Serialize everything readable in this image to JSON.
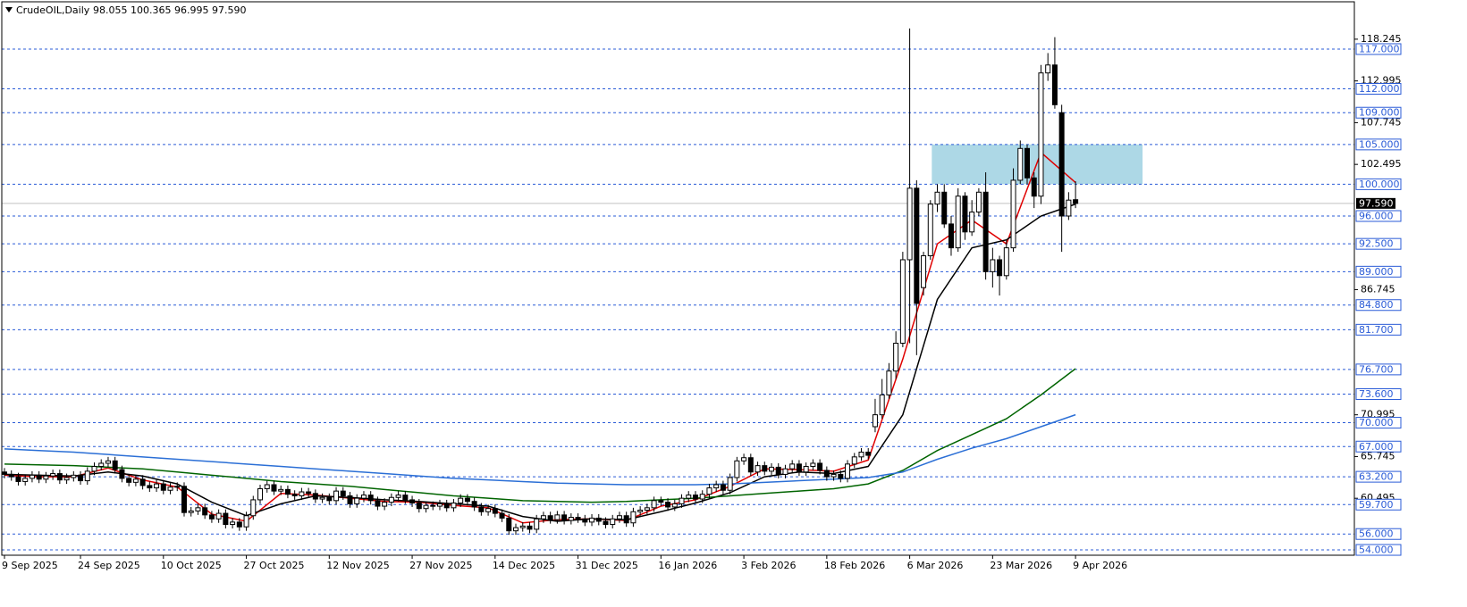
{
  "chart_data": {
    "type": "candlestick",
    "title": "CrudeOIL,Daily",
    "quote": "98.055 100.365 96.995 97.590",
    "xlim": [
      -0.39,
      195.35
    ],
    "ylim": [
      53.33,
      122.95
    ],
    "xticks": [
      {
        "value": 0,
        "label": "9 Sep 2025"
      },
      {
        "value": 11,
        "label": "24 Sep 2025"
      },
      {
        "value": 23,
        "label": "10 Oct 2025"
      },
      {
        "value": 35,
        "label": "27 Oct 2025"
      },
      {
        "value": 47,
        "label": "12 Nov 2025"
      },
      {
        "value": 59,
        "label": "27 Nov 2025"
      },
      {
        "value": 71,
        "label": "14 Dec 2025"
      },
      {
        "value": 83,
        "label": "31 Dec 2025"
      },
      {
        "value": 95,
        "label": "16 Jan 2026"
      },
      {
        "value": 107,
        "label": "3 Feb 2026"
      },
      {
        "value": 119,
        "label": "18 Feb 2026"
      },
      {
        "value": 131,
        "label": "6 Mar 2026"
      },
      {
        "value": 143,
        "label": "23 Mar 2026"
      },
      {
        "value": 155,
        "label": "9 Apr 2026"
      }
    ],
    "yticks": [
      118.245,
      112.995,
      107.745,
      102.495,
      86.745,
      70.995,
      65.745,
      60.495
    ],
    "levels": [
      {
        "value": 117,
        "label": "117.000"
      },
      {
        "value": 112,
        "label": "112.000"
      },
      {
        "value": 109,
        "label": "109.000"
      },
      {
        "value": 105,
        "label": "105.000"
      },
      {
        "value": 100,
        "label": "100.000"
      },
      {
        "value": 96,
        "label": "96.000"
      },
      {
        "value": 92.5,
        "label": "92.500"
      },
      {
        "value": 89,
        "label": "89.000"
      },
      {
        "value": 84.8,
        "label": "84.800"
      },
      {
        "value": 81.7,
        "label": "81.700"
      },
      {
        "value": 76.7,
        "label": "76.700"
      },
      {
        "value": 73.6,
        "label": "73.600"
      },
      {
        "value": 70,
        "label": "70.000"
      },
      {
        "value": 67,
        "label": "67.000"
      },
      {
        "value": 63.2,
        "label": "63.200"
      },
      {
        "value": 59.7,
        "label": "59.700"
      },
      {
        "value": 56,
        "label": "56.000"
      },
      {
        "value": 54,
        "label": "54.000"
      }
    ],
    "level_color": "#2a5bd7",
    "current": {
      "value": 97.59,
      "label": "97.590"
    },
    "zone": {
      "x": [
        134.2,
        164.7
      ],
      "y": [
        100,
        105
      ],
      "color": "#add8e6"
    },
    "bull_color": "#ffffff",
    "bear_color": "#000000",
    "open": [
      63.8,
      63.5,
      63.2,
      62.6,
      63.0,
      63.4,
      62.9,
      63.3,
      63.6,
      62.8,
      63.1,
      63.4,
      62.7,
      63.9,
      64.5,
      64.9,
      65.2,
      64.1,
      63.0,
      62.5,
      62.9,
      62.1,
      61.8,
      62.3,
      61.5,
      61.9,
      62.0,
      58.7,
      58.9,
      59.3,
      58.4,
      57.9,
      58.6,
      57.2,
      57.5,
      56.9,
      58.3,
      60.3,
      61.7,
      62.2,
      61.4,
      61.6,
      61.0,
      60.8,
      61.3,
      61.1,
      60.4,
      60.6,
      60.2,
      61.4,
      60.8,
      59.8,
      60.5,
      60.9,
      60.2,
      59.5,
      60.0,
      60.6,
      60.9,
      60.3,
      59.9,
      59.2,
      59.6,
      59.5,
      59.8,
      59.3,
      59.9,
      60.5,
      60.1,
      59.4,
      58.8,
      59.2,
      58.6,
      58.0,
      56.4,
      56.8,
      57.0,
      56.6,
      57.9,
      58.3,
      57.8,
      58.4,
      57.7,
      58.1,
      57.9,
      57.5,
      58.0,
      57.6,
      57.2,
      57.9,
      58.3,
      57.4,
      58.8,
      59.0,
      59.3,
      60.2,
      60.0,
      59.4,
      59.8,
      60.5,
      60.9,
      60.4,
      61.0,
      61.8,
      62.2,
      61.5,
      63.1,
      65.2,
      65.6,
      63.8,
      64.6,
      63.9,
      64.4,
      63.5,
      64.2,
      64.8,
      63.8,
      64.5,
      64.9,
      64.0,
      63.2,
      63.5,
      63.0,
      64.8,
      65.7,
      66.3,
      69.5,
      71.0,
      73.5,
      76.5,
      80.0,
      90.5,
      99.5,
      87.0,
      91.0,
      97.5,
      99.0,
      95.0,
      92.0,
      98.5,
      94.0,
      96.5,
      99.0,
      89.0,
      90.5,
      88.5,
      92.0,
      100.5,
      104.5,
      100.8,
      98.5,
      114.0,
      115.0,
      109.0,
      96.0,
      98.055
    ],
    "high": [
      64.3,
      64.0,
      63.7,
      63.5,
      63.9,
      63.9,
      63.8,
      64.1,
      64.1,
      63.6,
      63.9,
      63.9,
      64.4,
      65.0,
      65.4,
      65.7,
      65.7,
      64.6,
      63.5,
      63.4,
      63.4,
      62.6,
      62.8,
      62.8,
      62.4,
      62.5,
      62.5,
      59.4,
      59.8,
      59.8,
      58.9,
      59.1,
      59.1,
      58.0,
      58.0,
      58.8,
      60.8,
      62.2,
      62.7,
      62.7,
      62.1,
      62.1,
      61.5,
      61.8,
      61.8,
      61.6,
      61.1,
      61.1,
      61.9,
      61.9,
      61.3,
      61.0,
      61.4,
      61.4,
      60.7,
      60.5,
      61.1,
      61.4,
      61.4,
      60.8,
      60.4,
      60.1,
      60.1,
      60.3,
      60.3,
      60.4,
      61.0,
      61.0,
      60.6,
      59.9,
      59.7,
      59.7,
      59.1,
      58.5,
      57.3,
      57.5,
      57.5,
      58.4,
      58.8,
      58.8,
      58.9,
      58.9,
      58.6,
      58.6,
      58.4,
      58.5,
      58.5,
      58.1,
      58.4,
      58.8,
      58.8,
      59.3,
      59.5,
      59.8,
      60.7,
      60.7,
      60.5,
      60.3,
      61.0,
      61.4,
      61.4,
      61.5,
      62.3,
      62.7,
      62.7,
      63.6,
      65.7,
      66.1,
      66.1,
      65.1,
      65.1,
      64.9,
      64.9,
      64.7,
      65.3,
      65.3,
      65.0,
      65.4,
      65.4,
      64.5,
      64.0,
      64.0,
      65.3,
      66.2,
      66.8,
      66.8,
      73.0,
      75.5,
      77.5,
      81.5,
      91.5,
      119.6,
      100.5,
      91.5,
      98.0,
      100.0,
      100.0,
      96.0,
      99.5,
      99.0,
      98.0,
      99.5,
      101.5,
      92.0,
      91.0,
      93.0,
      102.0,
      105.5,
      105.0,
      101.5,
      115.0,
      116.5,
      118.5,
      110.0,
      99.0,
      100.365
    ],
    "low": [
      63.0,
      62.7,
      62.1,
      62.1,
      62.5,
      62.4,
      62.4,
      62.8,
      62.3,
      62.3,
      62.6,
      62.2,
      62.2,
      63.4,
      64.0,
      64.4,
      63.6,
      62.5,
      62.0,
      62.0,
      61.6,
      61.3,
      61.3,
      61.0,
      61.0,
      61.4,
      58.2,
      58.2,
      58.4,
      57.9,
      57.4,
      57.4,
      56.7,
      56.7,
      56.4,
      56.4,
      57.8,
      59.8,
      61.2,
      60.9,
      60.9,
      60.5,
      60.3,
      60.3,
      60.6,
      59.9,
      59.9,
      59.7,
      59.7,
      60.3,
      59.3,
      59.3,
      60.0,
      59.7,
      59.0,
      59.0,
      59.5,
      60.1,
      59.8,
      59.4,
      58.7,
      58.7,
      59.0,
      59.0,
      58.8,
      58.8,
      59.4,
      59.6,
      58.9,
      58.3,
      58.3,
      58.1,
      57.5,
      55.9,
      55.9,
      56.3,
      56.1,
      56.1,
      57.4,
      57.3,
      57.3,
      57.2,
      57.2,
      57.4,
      57.0,
      57.0,
      57.1,
      56.7,
      56.7,
      57.4,
      56.9,
      56.9,
      58.3,
      58.5,
      58.8,
      59.5,
      58.9,
      58.9,
      59.3,
      60.0,
      59.9,
      59.9,
      60.5,
      61.3,
      61.0,
      61.0,
      62.6,
      64.7,
      63.3,
      63.3,
      63.4,
      63.4,
      63.0,
      63.0,
      63.7,
      63.3,
      63.3,
      64.0,
      63.5,
      62.7,
      62.7,
      62.5,
      62.5,
      64.3,
      65.2,
      65.4,
      68.8,
      70.5,
      73.0,
      75.5,
      79.5,
      80.0,
      78.5,
      86.0,
      90.5,
      96.5,
      94.5,
      91.0,
      91.5,
      93.0,
      93.5,
      96.0,
      88.0,
      87.0,
      86.0,
      88.0,
      91.5,
      100.0,
      100.0,
      97.0,
      97.5,
      113.0,
      109.5,
      91.5,
      95.5,
      96.995
    ],
    "close": [
      63.5,
      63.2,
      62.6,
      63.0,
      63.4,
      62.9,
      63.3,
      63.6,
      62.8,
      63.1,
      63.4,
      62.7,
      63.9,
      64.5,
      64.9,
      65.2,
      64.1,
      63.0,
      62.5,
      62.9,
      62.1,
      61.8,
      62.3,
      61.5,
      61.9,
      62.0,
      58.7,
      58.9,
      59.3,
      58.4,
      57.9,
      58.6,
      57.2,
      57.5,
      56.9,
      58.3,
      60.3,
      61.7,
      62.2,
      61.4,
      61.6,
      61.0,
      60.8,
      61.3,
      61.1,
      60.4,
      60.6,
      60.2,
      61.4,
      60.8,
      59.8,
      60.5,
      60.9,
      60.2,
      59.5,
      60.0,
      60.6,
      60.9,
      60.3,
      59.9,
      59.2,
      59.6,
      59.5,
      59.8,
      59.3,
      59.9,
      60.5,
      60.1,
      59.4,
      58.8,
      59.2,
      58.6,
      58.0,
      56.4,
      56.8,
      57.0,
      56.6,
      57.9,
      58.3,
      57.8,
      58.4,
      57.7,
      58.1,
      57.9,
      57.5,
      58.0,
      57.6,
      57.2,
      57.9,
      58.3,
      57.4,
      58.8,
      59.0,
      59.3,
      60.2,
      60.0,
      59.4,
      59.8,
      60.5,
      60.9,
      60.4,
      61.0,
      61.8,
      62.2,
      61.5,
      63.1,
      65.2,
      65.6,
      63.8,
      64.6,
      63.9,
      64.4,
      63.5,
      64.2,
      64.8,
      63.8,
      64.5,
      64.9,
      64.0,
      63.2,
      63.5,
      63.0,
      64.8,
      65.7,
      66.3,
      65.9,
      71.0,
      73.5,
      76.5,
      80.0,
      90.5,
      99.5,
      85.0,
      91.0,
      97.5,
      99.0,
      95.0,
      92.0,
      98.5,
      94.0,
      96.5,
      99.0,
      89.0,
      90.5,
      88.5,
      92.0,
      100.5,
      104.5,
      100.8,
      98.5,
      114.0,
      115.0,
      110.0,
      96.0,
      98.0,
      97.59
    ],
    "lines_x": [
      0,
      5,
      10,
      15,
      20,
      25,
      30,
      35,
      40,
      45,
      50,
      55,
      60,
      65,
      70,
      75,
      80,
      85,
      90,
      95,
      100,
      105,
      110,
      115,
      120,
      125,
      130,
      135,
      140,
      145,
      150,
      155
    ],
    "lines": [
      {
        "color": "#e00000",
        "values": [
          63.4,
          63.2,
          63.2,
          64.3,
          62.8,
          61.9,
          58.5,
          57.6,
          61.1,
          60.9,
          60.5,
          60.1,
          60.0,
          59.6,
          59.3,
          57.4,
          57.8,
          57.9,
          57.7,
          59.5,
          60.3,
          62.0,
          64.2,
          64.1,
          63.9,
          65.3,
          78.0,
          92.5,
          95.5,
          92.5,
          104.0,
          100.2
        ]
      },
      {
        "color": "#000000",
        "values": [
          63.5,
          63.4,
          63.3,
          63.8,
          63.3,
          62.3,
          60.0,
          58.3,
          59.8,
          60.8,
          60.6,
          60.3,
          60.1,
          59.8,
          59.5,
          58.2,
          57.6,
          57.9,
          57.8,
          58.8,
          59.9,
          61.2,
          63.2,
          63.8,
          63.6,
          64.5,
          71.0,
          85.5,
          92.0,
          93.0,
          96.0,
          97.5
        ]
      },
      {
        "color": "#006400",
        "values": [
          64.8,
          64.7,
          64.6,
          64.4,
          64.2,
          63.8,
          63.4,
          63.0,
          62.6,
          62.3,
          62.0,
          61.6,
          61.2,
          60.8,
          60.5,
          60.2,
          60.1,
          60.0,
          60.1,
          60.3,
          60.5,
          60.8,
          61.1,
          61.4,
          61.7,
          62.3,
          64.0,
          66.5,
          68.5,
          70.5,
          73.5,
          76.8
        ]
      },
      {
        "color": "#2b6fd6",
        "values": [
          66.7,
          66.5,
          66.3,
          66.0,
          65.7,
          65.4,
          65.1,
          64.8,
          64.5,
          64.2,
          63.9,
          63.6,
          63.3,
          63.0,
          62.8,
          62.6,
          62.4,
          62.3,
          62.2,
          62.2,
          62.2,
          62.3,
          62.5,
          62.7,
          62.9,
          63.1,
          63.8,
          65.4,
          66.8,
          68.0,
          69.5,
          71.0
        ]
      }
    ]
  }
}
